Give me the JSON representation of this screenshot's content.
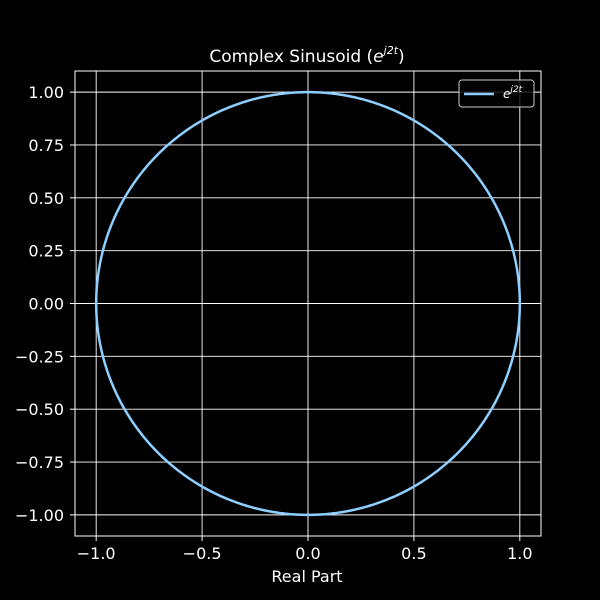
{
  "chart_data": {
    "type": "line",
    "title": "Complex Sinusoid (",
    "title_math_base": "e",
    "title_math_exp": "j2t",
    "title_suffix": ")",
    "xlabel": "Real Part",
    "ylabel": "",
    "xlim": [
      -1.1,
      1.1
    ],
    "ylim": [
      -1.1,
      1.1
    ],
    "xticks": [
      -1.0,
      -0.5,
      0.0,
      0.5,
      1.0
    ],
    "xtick_labels": [
      "−1.0",
      "−0.5",
      "0.0",
      "0.5",
      "1.0"
    ],
    "yticks": [
      1.0,
      0.75,
      0.5,
      0.25,
      0.0,
      -0.25,
      -0.5,
      -0.75,
      -1.0
    ],
    "ytick_labels": [
      "1.00",
      "0.75",
      "0.50",
      "0.25",
      "0.00",
      "−0.25",
      "−0.50",
      "−0.75",
      "−1.00"
    ],
    "grid": true,
    "zero_lines": "dotted",
    "legend_position": "top-right",
    "series": [
      {
        "name_base": "e",
        "name_exp": "j2t",
        "color": "#8ecfff",
        "parametric": "x = cos(θ), y = sin(θ)",
        "samples": 720
      }
    ]
  },
  "colors": {
    "background": "#000000",
    "grid": "#ffffff",
    "text": "#ffffff",
    "series": "#8ecfff"
  }
}
